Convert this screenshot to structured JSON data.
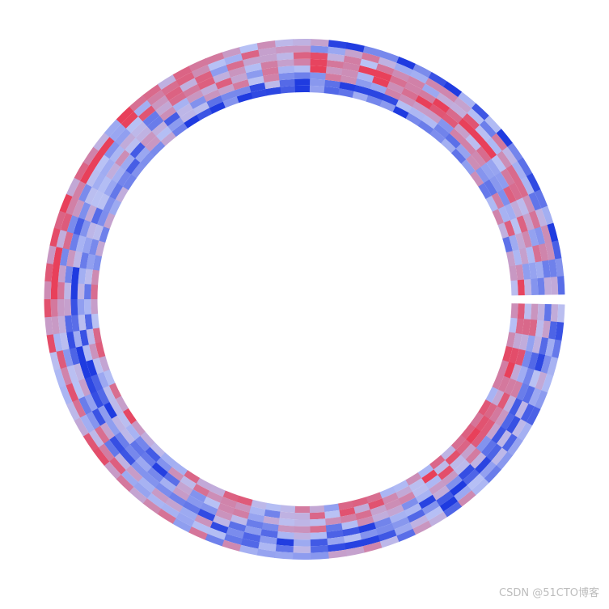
{
  "chart_data": {
    "type": "heatmap",
    "layout": "circular",
    "title": "",
    "tracks": 8,
    "sectors": 90,
    "gap_position": "right",
    "color_scale": {
      "low": "#1f3be0",
      "mid": "#b9c2f5",
      "high": "#e8405a"
    },
    "values": [],
    "value_range": [
      -1,
      1
    ],
    "legend": "none",
    "grid": false
  },
  "watermark": {
    "text": "CSDN @51CTO博客"
  }
}
